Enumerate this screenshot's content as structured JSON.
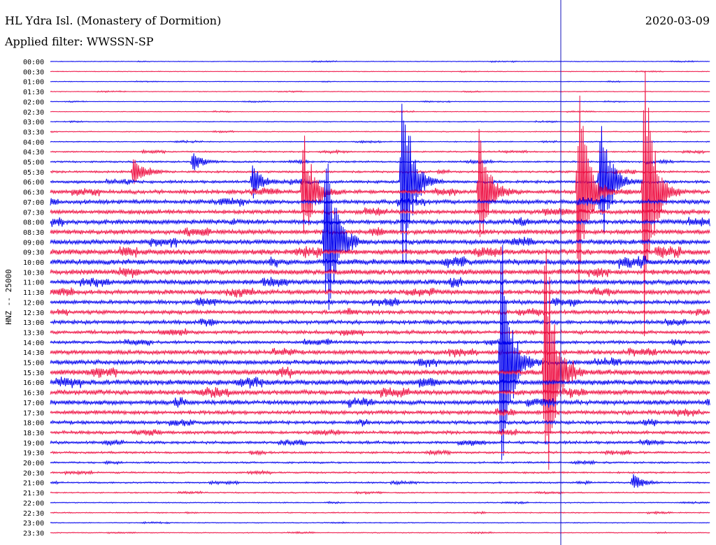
{
  "header": {
    "station": "HL Ydra Isl. (Monastery of Dormition)",
    "date": "2020-03-09",
    "filter": "Applied filter: WWSSN-SP"
  },
  "chart_data": {
    "type": "line",
    "title": "HL Ydra Isl. (Monastery of Dormition)",
    "subtitle": "Applied filter: WWSSN-SP",
    "ylabel": "HNZ -- 25000",
    "row_labels": [
      "00:00",
      "00:30",
      "01:00",
      "01:30",
      "02:00",
      "02:30",
      "03:00",
      "03:30",
      "04:00",
      "04:30",
      "05:00",
      "05:30",
      "06:00",
      "06:30",
      "07:00",
      "07:30",
      "08:00",
      "08:30",
      "09:00",
      "09:30",
      "10:00",
      "10:30",
      "11:00",
      "11:30",
      "12:00",
      "12:30",
      "13:00",
      "13:30",
      "14:00",
      "14:30",
      "15:00",
      "15:30",
      "16:00",
      "16:30",
      "17:00",
      "17:30",
      "18:00",
      "18:30",
      "19:00",
      "19:30",
      "20:00",
      "20:30",
      "21:00",
      "21:30",
      "22:00",
      "22:30",
      "23:00",
      "23:30"
    ],
    "series_colors": [
      "#0000ee",
      "#ee1144"
    ],
    "noise_levels": [
      0.4,
      0.4,
      0.4,
      0.4,
      0.4,
      0.4,
      0.5,
      0.5,
      0.6,
      0.8,
      1.0,
      1.2,
      1.6,
      2.2,
      2.4,
      2.4,
      2.6,
      2.6,
      2.8,
      3.0,
      3.2,
      3.0,
      2.8,
      2.6,
      2.4,
      2.2,
      2.2,
      2.0,
      1.8,
      2.4,
      2.6,
      3.0,
      3.0,
      2.8,
      2.6,
      2.2,
      2.0,
      1.8,
      1.6,
      1.2,
      1.0,
      1.0,
      0.9,
      0.7,
      0.6,
      0.6,
      0.5,
      0.5
    ],
    "events": [
      {
        "row": 13,
        "minute": 11.5,
        "amplitude": 100
      },
      {
        "row": 18,
        "minute": 12.5,
        "amplitude": 160
      },
      {
        "row": 12,
        "minute": 16.0,
        "amplitude": 180
      },
      {
        "row": 13,
        "minute": 19.5,
        "amplitude": 110
      },
      {
        "row": 12,
        "minute": 25.0,
        "amplitude": 120
      },
      {
        "row": 13,
        "minute": 27.0,
        "amplitude": 220
      },
      {
        "row": 30,
        "minute": 20.5,
        "amplitude": 210
      },
      {
        "row": 31,
        "minute": 22.5,
        "amplitude": 230
      },
      {
        "row": 13,
        "minute": 24.0,
        "amplitude": 170
      },
      {
        "row": 12,
        "minute": 9.2,
        "amplitude": 25
      },
      {
        "row": 11,
        "minute": 3.8,
        "amplitude": 22
      },
      {
        "row": 10,
        "minute": 6.5,
        "amplitude": 14
      },
      {
        "row": 42,
        "minute": 26.5,
        "amplitude": 12
      }
    ],
    "marker_minute": 23.2,
    "xlim": [
      0,
      30
    ],
    "grid": false
  }
}
